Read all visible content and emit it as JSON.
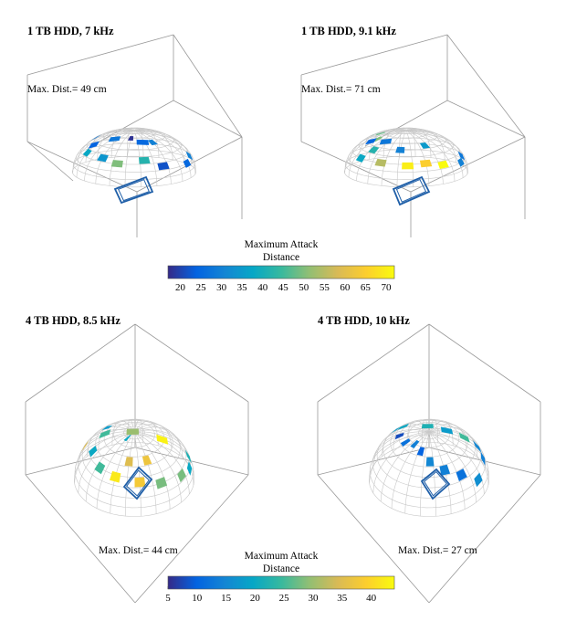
{
  "colormap": [
    "#352a87",
    "#0363e1",
    "#1485d4",
    "#06a7c6",
    "#38b99e",
    "#92bf73",
    "#d9ba56",
    "#fcce2e",
    "#f9fb0e"
  ],
  "chart_data": [
    {
      "type": "heatmap",
      "title": "1 TB HDD, 7 kHz",
      "annotation": "Max. Dist.= 49 cm",
      "view": "oblique",
      "clim": [
        17,
        72
      ],
      "patches": [
        {
          "az": 60,
          "el": 70,
          "value": 18
        },
        {
          "az": 15,
          "el": 60,
          "value": 30
        },
        {
          "az": 170,
          "el": 45,
          "value": 28
        },
        {
          "az": 120,
          "el": 35,
          "value": 38
        },
        {
          "az": 90,
          "el": 35,
          "value": 34
        },
        {
          "az": 70,
          "el": 30,
          "value": 50
        },
        {
          "az": 40,
          "el": 35,
          "value": 42
        },
        {
          "az": 20,
          "el": 25,
          "value": 22
        },
        {
          "az": 185,
          "el": 25,
          "value": 24
        },
        {
          "az": 210,
          "el": 30,
          "value": 28
        },
        {
          "az": 240,
          "el": 22,
          "value": 25
        },
        {
          "az": 300,
          "el": 15,
          "value": 30
        },
        {
          "az": 345,
          "el": 20,
          "value": 25
        }
      ]
    },
    {
      "type": "heatmap",
      "title": "1 TB HDD, 9.1 kHz",
      "annotation": "Max. Dist.= 71 cm",
      "view": "oblique",
      "clim": [
        17,
        72
      ],
      "patches": [
        {
          "az": 150,
          "el": 65,
          "value": 48
        },
        {
          "az": 120,
          "el": 60,
          "value": 50
        },
        {
          "az": 170,
          "el": 55,
          "value": 45
        },
        {
          "az": 100,
          "el": 45,
          "value": 42
        },
        {
          "az": 60,
          "el": 50,
          "value": 30
        },
        {
          "az": 20,
          "el": 55,
          "value": 35
        },
        {
          "az": 80,
          "el": 30,
          "value": 55
        },
        {
          "az": 50,
          "el": 28,
          "value": 70
        },
        {
          "az": 30,
          "el": 30,
          "value": 65
        },
        {
          "az": 10,
          "el": 25,
          "value": 72
        },
        {
          "az": 190,
          "el": 30,
          "value": 25
        },
        {
          "az": 210,
          "el": 25,
          "value": 28
        },
        {
          "az": 110,
          "el": 30,
          "value": 38
        },
        {
          "az": 340,
          "el": 20,
          "value": 30
        },
        {
          "az": 300,
          "el": 15,
          "value": 28
        }
      ]
    },
    {
      "type": "heatmap",
      "title": "4 TB HDD, 8.5 kHz",
      "annotation": "Max. Dist.= 44 cm",
      "view": "top",
      "clim": [
        5,
        44
      ],
      "patches": [
        {
          "az": 90,
          "el": 80,
          "value": 20
        },
        {
          "az": 60,
          "el": 55,
          "value": 35
        },
        {
          "az": 30,
          "el": 55,
          "value": 37
        },
        {
          "az": 180,
          "el": 55,
          "value": 18
        },
        {
          "az": 130,
          "el": 45,
          "value": 20
        },
        {
          "az": 100,
          "el": 40,
          "value": 25
        },
        {
          "az": 75,
          "el": 38,
          "value": 42
        },
        {
          "az": 45,
          "el": 35,
          "value": 38
        },
        {
          "az": 20,
          "el": 30,
          "value": 28
        },
        {
          "az": 160,
          "el": 30,
          "value": 35
        },
        {
          "az": 200,
          "el": 20,
          "value": 25
        },
        {
          "az": 230,
          "el": 15,
          "value": 30
        },
        {
          "az": 260,
          "el": 10,
          "value": 43
        },
        {
          "az": 300,
          "el": 12,
          "value": 22
        },
        {
          "az": 330,
          "el": 20,
          "value": 20
        },
        {
          "az": 350,
          "el": 25,
          "value": 28
        }
      ]
    },
    {
      "type": "heatmap",
      "title": "4 TB HDD, 10 kHz",
      "annotation": "Max. Dist.= 27 cm",
      "view": "top",
      "clim": [
        5,
        44
      ],
      "patches": [
        {
          "az": 150,
          "el": 60,
          "value": 8
        },
        {
          "az": 120,
          "el": 65,
          "value": 12
        },
        {
          "az": 95,
          "el": 70,
          "value": 14
        },
        {
          "az": 70,
          "el": 65,
          "value": 10
        },
        {
          "az": 50,
          "el": 55,
          "value": 15
        },
        {
          "az": 30,
          "el": 45,
          "value": 14
        },
        {
          "az": 10,
          "el": 35,
          "value": 12
        },
        {
          "az": 180,
          "el": 45,
          "value": 18
        },
        {
          "az": 200,
          "el": 35,
          "value": 20
        },
        {
          "az": 230,
          "el": 25,
          "value": 22
        },
        {
          "az": 250,
          "el": 20,
          "value": 18
        },
        {
          "az": 270,
          "el": 18,
          "value": 25
        },
        {
          "az": 290,
          "el": 18,
          "value": 15
        },
        {
          "az": 320,
          "el": 25,
          "value": 14
        },
        {
          "az": 350,
          "el": 20,
          "value": 16
        }
      ]
    }
  ],
  "colorbars": [
    {
      "title_line1": "Maximum Attack",
      "title_line2": "Distance",
      "min": 17,
      "max": 72,
      "ticks": [
        "20",
        "25",
        "30",
        "35",
        "40",
        "45",
        "50",
        "55",
        "60",
        "65",
        "70"
      ],
      "tick_values": [
        20,
        25,
        30,
        35,
        40,
        45,
        50,
        55,
        60,
        65,
        70
      ]
    },
    {
      "title_line1": "Maximum Attack",
      "title_line2": "Distance",
      "min": 5,
      "max": 44,
      "ticks": [
        "5",
        "10",
        "15",
        "20",
        "25",
        "30",
        "35",
        "40"
      ],
      "tick_values": [
        5,
        10,
        15,
        20,
        25,
        30,
        35,
        40
      ]
    }
  ]
}
